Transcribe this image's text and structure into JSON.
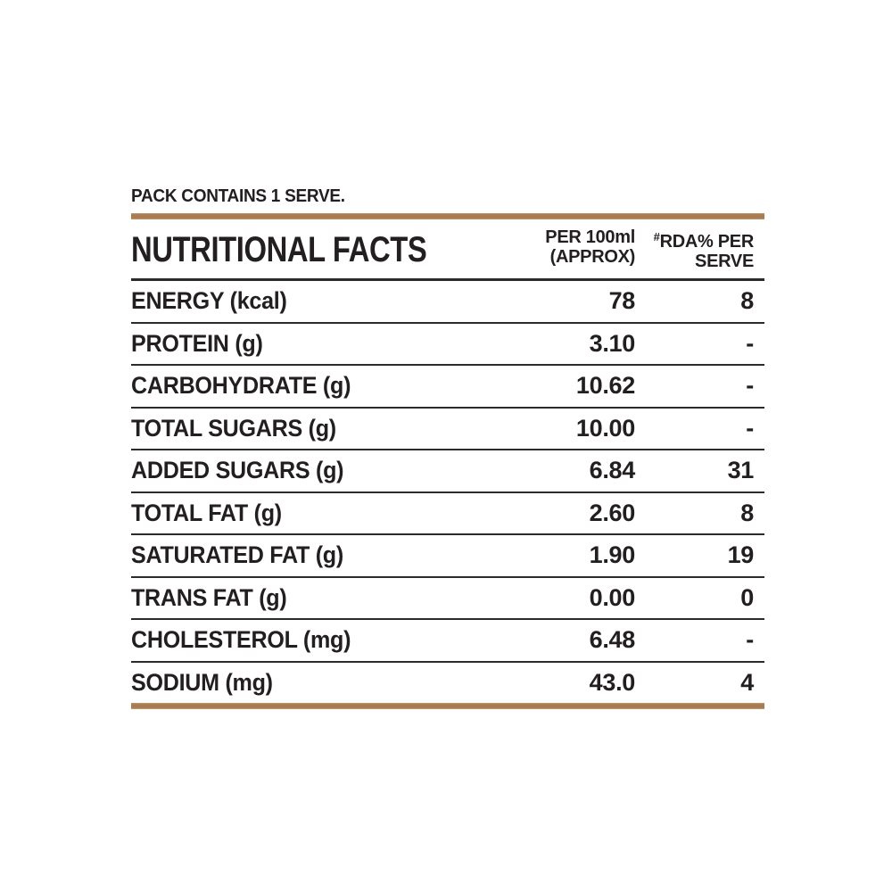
{
  "pack_note": "PACK CONTAINS 1 SERVE.",
  "accent_color": "#a87c50",
  "text_color": "#231f20",
  "header": {
    "title": "NUTRITIONAL FACTS",
    "col2_line1": "PER 100ml",
    "col2_line2": "(APPROX)",
    "col3_hash": "#",
    "col3_line1": "RDA% PER",
    "col3_line2": "SERVE"
  },
  "table": {
    "rows": [
      {
        "label": "ENERGY (kcal)",
        "per_100ml": "78",
        "rda": "8"
      },
      {
        "label": "PROTEIN (g)",
        "per_100ml": "3.10",
        "rda": "-"
      },
      {
        "label": "CARBOHYDRATE (g)",
        "per_100ml": "10.62",
        "rda": "-"
      },
      {
        "label": "TOTAL SUGARS (g)",
        "per_100ml": "10.00",
        "rda": "-"
      },
      {
        "label": "ADDED SUGARS (g)",
        "per_100ml": "6.84",
        "rda": "31"
      },
      {
        "label": "TOTAL FAT (g)",
        "per_100ml": "2.60",
        "rda": "8"
      },
      {
        "label": "SATURATED FAT (g)",
        "per_100ml": "1.90",
        "rda": "19"
      },
      {
        "label": "TRANS FAT (g)",
        "per_100ml": "0.00",
        "rda": "0"
      },
      {
        "label": "CHOLESTEROL (mg)",
        "per_100ml": "6.48",
        "rda": "-"
      },
      {
        "label": "SODIUM (mg)",
        "per_100ml": "43.0",
        "rda": "4"
      }
    ]
  }
}
